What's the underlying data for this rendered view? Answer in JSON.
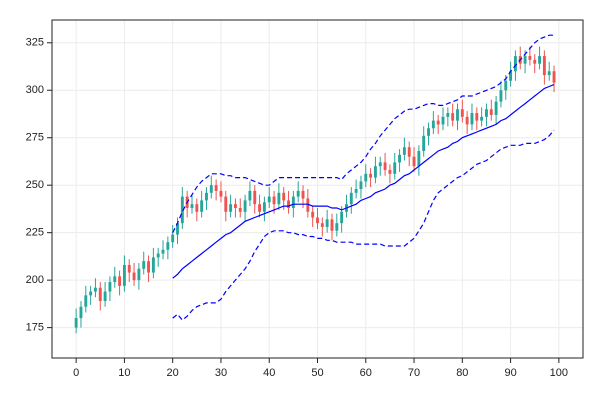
{
  "chart_data": {
    "type": "candlestick",
    "x": [
      0,
      1,
      2,
      3,
      4,
      5,
      6,
      7,
      8,
      9,
      10,
      11,
      12,
      13,
      14,
      15,
      16,
      17,
      18,
      19,
      20,
      21,
      22,
      23,
      24,
      25,
      26,
      27,
      28,
      29,
      30,
      31,
      32,
      33,
      34,
      35,
      36,
      37,
      38,
      39,
      40,
      41,
      42,
      43,
      44,
      45,
      46,
      47,
      48,
      49,
      50,
      51,
      52,
      53,
      54,
      55,
      56,
      57,
      58,
      59,
      60,
      61,
      62,
      63,
      64,
      65,
      66,
      67,
      68,
      69,
      70,
      71,
      72,
      73,
      74,
      75,
      76,
      77,
      78,
      79,
      80,
      81,
      82,
      83,
      84,
      85,
      86,
      87,
      88,
      89,
      90,
      91,
      92,
      93,
      94,
      95,
      96,
      97,
      98,
      99
    ],
    "open": [
      175,
      180,
      186,
      192,
      194,
      196,
      189,
      194,
      199,
      202,
      197,
      208,
      204,
      200,
      206,
      210,
      204,
      212,
      214,
      216,
      220,
      224,
      230,
      244,
      238,
      240,
      236,
      242,
      246,
      250,
      247,
      244,
      236,
      240,
      238,
      236,
      242,
      247,
      240,
      236,
      241,
      244,
      240,
      246,
      242,
      238,
      244,
      247,
      243,
      236,
      233,
      230,
      228,
      232,
      226,
      230,
      236,
      240,
      246,
      248,
      252,
      256,
      254,
      260,
      262,
      258,
      256,
      262,
      266,
      270,
      265,
      260,
      268,
      276,
      280,
      284,
      282,
      286,
      288,
      284,
      290,
      286,
      282,
      288,
      284,
      286,
      290,
      287,
      294,
      300,
      305,
      310,
      318,
      314,
      318,
      316,
      314,
      318,
      308,
      310
    ],
    "high": [
      185,
      189,
      197,
      197,
      201,
      199,
      199,
      202,
      207,
      205,
      213,
      211,
      209,
      209,
      215,
      213,
      217,
      217,
      221,
      223,
      229,
      233,
      249,
      247,
      245,
      243,
      247,
      249,
      255,
      253,
      252,
      247,
      245,
      243,
      243,
      245,
      252,
      250,
      245,
      244,
      249,
      247,
      251,
      249,
      247,
      247,
      252,
      250,
      248,
      239,
      238,
      233,
      237,
      235,
      235,
      239,
      245,
      249,
      253,
      255,
      261,
      259,
      265,
      265,
      267,
      261,
      267,
      269,
      275,
      273,
      270,
      271,
      281,
      283,
      289,
      287,
      291,
      291,
      293,
      293,
      295,
      289,
      293,
      291,
      291,
      293,
      295,
      297,
      305,
      308,
      315,
      321,
      323,
      321,
      323,
      319,
      323,
      321,
      315,
      313
    ],
    "low": [
      172,
      175,
      183,
      187,
      191,
      184,
      186,
      189,
      196,
      192,
      194,
      199,
      197,
      195,
      203,
      199,
      201,
      207,
      211,
      211,
      217,
      219,
      227,
      233,
      235,
      231,
      233,
      237,
      243,
      242,
      241,
      231,
      233,
      233,
      233,
      231,
      239,
      235,
      233,
      231,
      238,
      235,
      237,
      237,
      235,
      233,
      241,
      238,
      233,
      228,
      227,
      223,
      225,
      221,
      223,
      225,
      233,
      235,
      243,
      243,
      249,
      249,
      251,
      255,
      255,
      251,
      253,
      257,
      263,
      260,
      257,
      255,
      265,
      271,
      277,
      277,
      279,
      281,
      281,
      279,
      283,
      277,
      279,
      279,
      281,
      281,
      284,
      282,
      291,
      295,
      302,
      305,
      311,
      309,
      313,
      309,
      311,
      303,
      305,
      299
    ],
    "close": [
      180,
      186,
      192,
      194,
      196,
      189,
      194,
      199,
      202,
      197,
      208,
      204,
      200,
      206,
      210,
      204,
      212,
      214,
      216,
      220,
      224,
      230,
      244,
      238,
      240,
      236,
      242,
      246,
      250,
      247,
      244,
      236,
      240,
      238,
      236,
      242,
      247,
      240,
      236,
      241,
      244,
      240,
      246,
      242,
      238,
      244,
      247,
      243,
      236,
      233,
      230,
      228,
      232,
      226,
      230,
      236,
      240,
      246,
      248,
      252,
      256,
      254,
      260,
      262,
      258,
      256,
      262,
      266,
      270,
      265,
      260,
      268,
      276,
      280,
      284,
      282,
      286,
      288,
      284,
      290,
      286,
      282,
      288,
      284,
      286,
      290,
      287,
      294,
      300,
      305,
      310,
      318,
      314,
      318,
      316,
      314,
      318,
      308,
      310,
      304
    ],
    "up_color": "#26a69a",
    "down_color": "#ef5350",
    "series": [
      {
        "color": "#0000ff",
        "dash": false,
        "values": [
          null,
          null,
          null,
          null,
          null,
          null,
          null,
          null,
          null,
          null,
          null,
          null,
          null,
          null,
          null,
          null,
          null,
          null,
          null,
          null,
          201,
          203,
          206,
          208,
          210,
          212,
          214,
          216,
          218,
          220,
          222,
          224,
          225,
          227,
          229,
          231,
          232,
          233,
          234,
          235,
          236,
          237,
          238,
          239,
          239,
          240,
          240,
          240,
          240,
          239,
          239,
          239,
          239,
          238,
          238,
          237,
          238,
          239,
          240,
          242,
          243,
          244,
          246,
          247,
          248,
          250,
          251,
          253,
          255,
          256,
          258,
          260,
          262,
          264,
          266,
          268,
          269,
          270,
          272,
          273,
          275,
          276,
          277,
          278,
          279,
          280,
          281,
          282,
          284,
          285,
          287,
          289,
          291,
          293,
          295,
          297,
          299,
          301,
          302,
          303
        ]
      },
      {
        "color": "#0000ff",
        "dash": true,
        "values": [
          null,
          null,
          null,
          null,
          null,
          null,
          null,
          null,
          null,
          null,
          null,
          null,
          null,
          null,
          null,
          null,
          null,
          null,
          null,
          null,
          225,
          230,
          236,
          241,
          245,
          249,
          252,
          254,
          256,
          256,
          256,
          255,
          255,
          254,
          254,
          254,
          253,
          252,
          251,
          250,
          250,
          252,
          254,
          254,
          254,
          254,
          254,
          254,
          254,
          254,
          254,
          254,
          254,
          254,
          254,
          253,
          256,
          258,
          260,
          262,
          265,
          269,
          272,
          276,
          279,
          282,
          285,
          287,
          289,
          290,
          290,
          291,
          292,
          293,
          293,
          292,
          292,
          293,
          294,
          295,
          297,
          297,
          297,
          298,
          299,
          300,
          301,
          302,
          304,
          306,
          310,
          313,
          316,
          319,
          322,
          325,
          327,
          328,
          329,
          329
        ]
      },
      {
        "color": "#0000ff",
        "dash": true,
        "values": [
          null,
          null,
          null,
          null,
          null,
          null,
          null,
          null,
          null,
          null,
          null,
          null,
          null,
          null,
          null,
          null,
          null,
          null,
          null,
          null,
          180,
          182,
          179,
          181,
          184,
          186,
          187,
          188,
          188,
          188,
          190,
          194,
          197,
          200,
          203,
          206,
          210,
          215,
          219,
          223,
          225,
          226,
          226,
          226,
          225,
          225,
          224,
          224,
          223,
          223,
          222,
          222,
          221,
          221,
          220,
          220,
          220,
          220,
          219,
          219,
          219,
          219,
          219,
          219,
          218,
          218,
          218,
          218,
          218,
          220,
          222,
          226,
          230,
          236,
          242,
          246,
          248,
          250,
          252,
          254,
          255,
          257,
          259,
          261,
          262,
          263,
          265,
          267,
          269,
          270,
          271,
          271,
          271,
          272,
          272,
          272,
          273,
          274,
          276,
          279
        ]
      }
    ],
    "xlim": [
      -5,
      105
    ],
    "ylim": [
      159,
      337
    ],
    "xticks": [
      0,
      10,
      20,
      30,
      40,
      50,
      60,
      70,
      80,
      90,
      100
    ],
    "yticks": [
      175,
      200,
      225,
      250,
      275,
      300,
      325
    ],
    "grid": true
  }
}
